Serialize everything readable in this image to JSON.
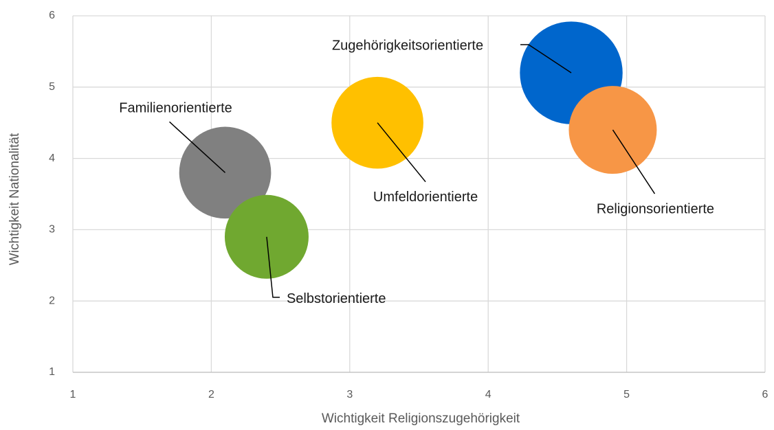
{
  "chart_data": {
    "type": "bubble",
    "xlabel": "Wichtigkeit Religionszugehörigkeit",
    "ylabel": "Wichtigkeit Nationalität",
    "xlim": [
      1,
      6
    ],
    "ylim": [
      1,
      6
    ],
    "xticks": [
      1,
      2,
      3,
      4,
      5,
      6
    ],
    "yticks": [
      1,
      2,
      3,
      4,
      5,
      6
    ],
    "grid": true,
    "series": [
      {
        "name": "Zugehörigkeitsorientierte",
        "color": "#0066cc",
        "x": 4.6,
        "y": 5.2,
        "size": 1.5
      },
      {
        "name": "Religionsorientierte",
        "color": "#f79646",
        "x": 4.9,
        "y": 4.4,
        "size": 1.1
      },
      {
        "name": "Umfeldorientierte",
        "color": "#ffc000",
        "x": 3.2,
        "y": 4.5,
        "size": 1.2
      },
      {
        "name": "Familienorientierte",
        "color": "#808080",
        "x": 2.1,
        "y": 3.8,
        "size": 1.2
      },
      {
        "name": "Selbstorientierte",
        "color": "#70a830",
        "x": 2.4,
        "y": 2.9,
        "size": 1.0
      }
    ]
  }
}
